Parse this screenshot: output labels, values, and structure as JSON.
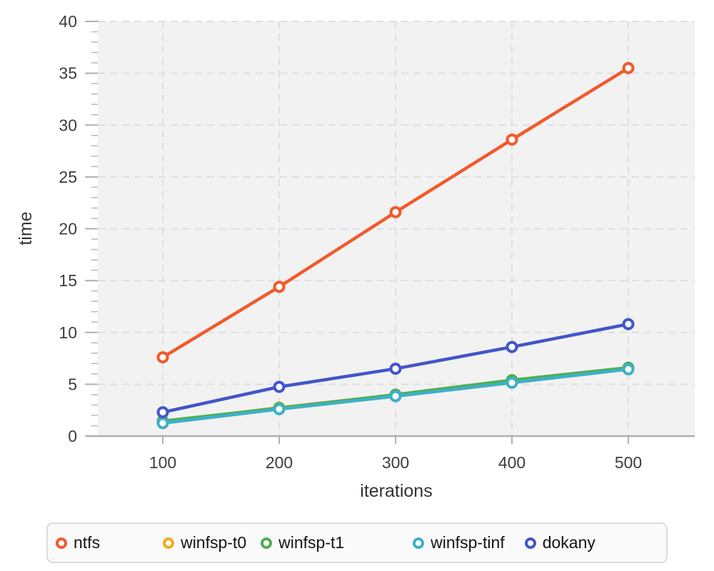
{
  "chart_data": {
    "type": "line",
    "title": "",
    "xlabel": "iterations",
    "ylabel": "time",
    "x": [
      100,
      200,
      300,
      400,
      500
    ],
    "x_ticks": [
      100,
      200,
      300,
      400,
      500
    ],
    "y_ticks": [
      0,
      5,
      10,
      15,
      20,
      25,
      30,
      35,
      40
    ],
    "ylim": [
      0,
      40
    ],
    "y_minor_step": 1,
    "grid": "dashed",
    "legend_position": "bottom",
    "plot_bg": "#f3f2f2",
    "grid_color": "#dcdcdc",
    "axis_color": "#b0b0b0",
    "series": [
      {
        "name": "ntfs",
        "color": "#f2592b",
        "values": [
          7.6,
          14.4,
          21.6,
          28.6,
          35.5
        ]
      },
      {
        "name": "winfsp-t0",
        "color": "#efac1e",
        "values": [
          1.35,
          2.75,
          3.95,
          5.3,
          6.5
        ]
      },
      {
        "name": "winfsp-t1",
        "color": "#4fae52",
        "values": [
          1.45,
          2.7,
          4.0,
          5.4,
          6.6
        ]
      },
      {
        "name": "winfsp-tinf",
        "color": "#3eb0c9",
        "values": [
          1.25,
          2.6,
          3.85,
          5.15,
          6.45
        ]
      },
      {
        "name": "dokany",
        "color": "#4355c9",
        "values": [
          2.3,
          4.75,
          6.5,
          8.6,
          10.8
        ]
      }
    ]
  }
}
